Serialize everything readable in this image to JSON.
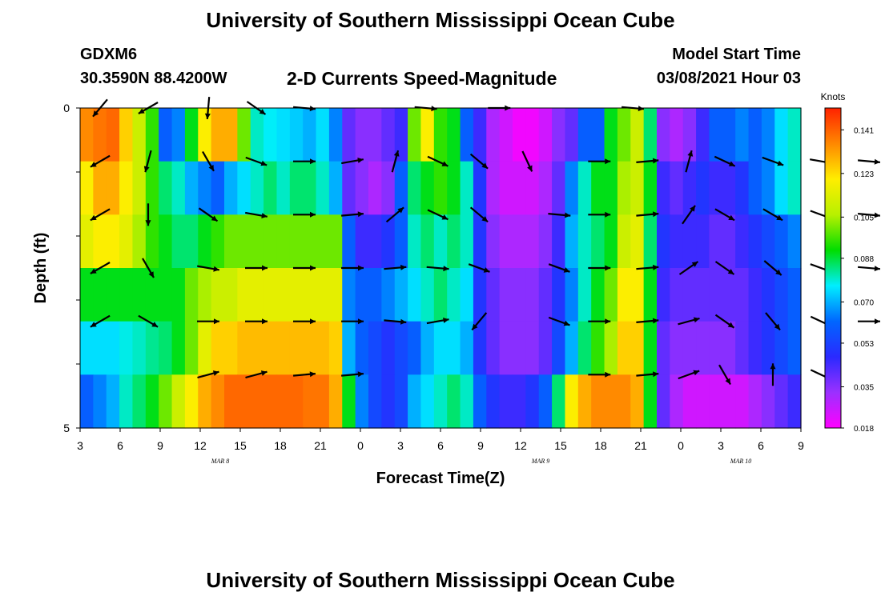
{
  "header": {
    "title": "University of Southern Mississippi Ocean Cube",
    "station_id": "GDXM6",
    "station_coords": "30.3590N 88.4200W",
    "plot_title": "2-D Currents Speed-Magnitude",
    "model_start_label": "Model Start Time",
    "model_start_value": "03/08/2021 Hour 03"
  },
  "footer": {
    "title": "University of Southern Mississippi Ocean Cube"
  },
  "chart_data": {
    "type": "heatmap",
    "title": "2-D Currents Speed-Magnitude",
    "xlabel": "Forecast Time(Z)",
    "ylabel": "Depth (ft)",
    "x_ticks": [
      "3",
      "6",
      "9",
      "12",
      "15",
      "18",
      "21",
      "0",
      "3",
      "6",
      "9",
      "12",
      "15",
      "18",
      "21",
      "0",
      "3",
      "6",
      "9"
    ],
    "date_labels": [
      {
        "label": "MAR 8",
        "tick_index": 3.5
      },
      {
        "label": "MAR 9",
        "tick_index": 11.5
      },
      {
        "label": "MAR 10",
        "tick_index": 16.5
      }
    ],
    "y_tick_labels": {
      "0": "0",
      "5": "5"
    },
    "ylim": [
      0,
      5
    ],
    "colorbar": {
      "unit": "Knots",
      "min": 0.018,
      "max": 0.15,
      "tick_labels": [
        "0.141",
        "0.123",
        "0.105",
        "0.088",
        "0.070",
        "0.053",
        "0.035",
        "0.018"
      ],
      "tick_values": [
        0.141,
        0.123,
        0.105,
        0.088,
        0.07,
        0.053,
        0.035,
        0.018
      ],
      "colors": [
        "#ff00ff",
        "#9b30ff",
        "#2a2aff",
        "#0066ff",
        "#00eeff",
        "#00dd00",
        "#b8f000",
        "#ffee00",
        "#ff8800",
        "#ff2200"
      ]
    },
    "series_time_hours": [
      3,
      4,
      5,
      6,
      7,
      8,
      9,
      10,
      11,
      12,
      13,
      14,
      15,
      16,
      17,
      18,
      19,
      20,
      21,
      22,
      23,
      24,
      25,
      26,
      27,
      28,
      29,
      30,
      31,
      32,
      33,
      34,
      35,
      36,
      37,
      38,
      39,
      40,
      41,
      42,
      43,
      44,
      45,
      46,
      47,
      48,
      49,
      50,
      51,
      52,
      53,
      54,
      55,
      56,
      57
    ],
    "speed_knots": [
      [
        0.135,
        0.138,
        0.14,
        0.125,
        0.11,
        0.095,
        0.06,
        0.065,
        0.09,
        0.12,
        0.13,
        0.13,
        0.1,
        0.08,
        0.077,
        0.075,
        0.073,
        0.07,
        0.075,
        0.065,
        0.04,
        0.035,
        0.035,
        0.04,
        0.045,
        0.1,
        0.12,
        0.095,
        0.09,
        0.06,
        0.045,
        0.03,
        0.025,
        0.02,
        0.02,
        0.025,
        0.035,
        0.04,
        0.06,
        0.06,
        0.09,
        0.1,
        0.11,
        0.085,
        0.035,
        0.03,
        0.035,
        0.045,
        0.06,
        0.06,
        0.065,
        0.06,
        0.065,
        0.075,
        0.08
      ],
      [
        0.12,
        0.13,
        0.13,
        0.12,
        0.11,
        0.095,
        0.085,
        0.08,
        0.07,
        0.065,
        0.06,
        0.07,
        0.075,
        0.08,
        0.085,
        0.08,
        0.085,
        0.085,
        0.08,
        0.07,
        0.04,
        0.035,
        0.03,
        0.035,
        0.06,
        0.085,
        0.09,
        0.095,
        0.09,
        0.08,
        0.05,
        0.03,
        0.025,
        0.025,
        0.025,
        0.03,
        0.04,
        0.065,
        0.08,
        0.09,
        0.09,
        0.105,
        0.11,
        0.09,
        0.045,
        0.04,
        0.045,
        0.05,
        0.045,
        0.045,
        0.05,
        0.06,
        0.065,
        0.075,
        0.08
      ],
      [
        0.115,
        0.12,
        0.12,
        0.115,
        0.105,
        0.095,
        0.09,
        0.085,
        0.085,
        0.09,
        0.095,
        0.1,
        0.1,
        0.1,
        0.1,
        0.1,
        0.1,
        0.1,
        0.1,
        0.1,
        0.06,
        0.045,
        0.045,
        0.05,
        0.06,
        0.08,
        0.085,
        0.08,
        0.085,
        0.08,
        0.05,
        0.035,
        0.03,
        0.03,
        0.03,
        0.035,
        0.045,
        0.07,
        0.08,
        0.085,
        0.09,
        0.11,
        0.115,
        0.085,
        0.05,
        0.045,
        0.045,
        0.045,
        0.04,
        0.04,
        0.045,
        0.05,
        0.055,
        0.06,
        0.065
      ],
      [
        0.09,
        0.09,
        0.09,
        0.09,
        0.09,
        0.09,
        0.09,
        0.09,
        0.1,
        0.105,
        0.11,
        0.11,
        0.115,
        0.115,
        0.115,
        0.115,
        0.115,
        0.115,
        0.115,
        0.115,
        0.065,
        0.06,
        0.06,
        0.065,
        0.07,
        0.075,
        0.08,
        0.085,
        0.08,
        0.075,
        0.05,
        0.04,
        0.035,
        0.035,
        0.035,
        0.04,
        0.05,
        0.065,
        0.08,
        0.09,
        0.1,
        0.12,
        0.12,
        0.09,
        0.045,
        0.04,
        0.04,
        0.04,
        0.04,
        0.04,
        0.04,
        0.045,
        0.05,
        0.055,
        0.06
      ],
      [
        0.075,
        0.075,
        0.075,
        0.078,
        0.08,
        0.083,
        0.085,
        0.09,
        0.1,
        0.115,
        0.125,
        0.125,
        0.128,
        0.128,
        0.128,
        0.128,
        0.128,
        0.128,
        0.128,
        0.125,
        0.07,
        0.06,
        0.055,
        0.05,
        0.055,
        0.06,
        0.07,
        0.075,
        0.075,
        0.07,
        0.05,
        0.04,
        0.035,
        0.035,
        0.035,
        0.04,
        0.055,
        0.07,
        0.085,
        0.095,
        0.105,
        0.125,
        0.125,
        0.09,
        0.04,
        0.035,
        0.035,
        0.035,
        0.035,
        0.035,
        0.04,
        0.045,
        0.05,
        0.055,
        0.06
      ],
      [
        0.06,
        0.065,
        0.07,
        0.08,
        0.085,
        0.09,
        0.1,
        0.11,
        0.12,
        0.13,
        0.135,
        0.14,
        0.14,
        0.14,
        0.14,
        0.14,
        0.14,
        0.138,
        0.138,
        0.13,
        0.09,
        0.065,
        0.055,
        0.05,
        0.055,
        0.07,
        0.075,
        0.08,
        0.085,
        0.08,
        0.06,
        0.05,
        0.045,
        0.045,
        0.05,
        0.06,
        0.085,
        0.12,
        0.13,
        0.135,
        0.135,
        0.135,
        0.13,
        0.09,
        0.04,
        0.03,
        0.025,
        0.025,
        0.025,
        0.025,
        0.025,
        0.03,
        0.035,
        0.04,
        0.045
      ]
    ],
    "vectors": [
      [
        [
          4.5,
          220
        ],
        [
          8.1,
          240
        ],
        [
          12.6,
          185
        ],
        [
          16.2,
          125
        ],
        [
          19.8,
          95
        ],
        [
          28.9,
          95
        ],
        [
          34.4,
          90
        ],
        [
          44.4,
          95
        ]
      ],
      [
        [
          4.5,
          240
        ],
        [
          8.1,
          195
        ],
        [
          12.6,
          150
        ],
        [
          16.2,
          110
        ],
        [
          19.8,
          90
        ],
        [
          23.4,
          80
        ],
        [
          26.6,
          15
        ],
        [
          29.8,
          115
        ],
        [
          32.9,
          130
        ],
        [
          36.5,
          155
        ],
        [
          41.9,
          90
        ],
        [
          45.5,
          85
        ],
        [
          48.6,
          15
        ],
        [
          51.3,
          115
        ],
        [
          54.9,
          110
        ],
        [
          58.5,
          100
        ],
        [
          62.1,
          95
        ],
        [
          65.7,
          110
        ]
      ],
      [
        [
          4.5,
          240
        ],
        [
          8.1,
          180
        ],
        [
          12.6,
          125
        ],
        [
          16.2,
          100
        ],
        [
          19.8,
          90
        ],
        [
          23.4,
          85
        ],
        [
          26.6,
          50
        ],
        [
          29.8,
          115
        ],
        [
          32.9,
          130
        ],
        [
          38.9,
          95
        ],
        [
          41.9,
          90
        ],
        [
          45.5,
          85
        ],
        [
          48.6,
          35
        ],
        [
          51.3,
          120
        ],
        [
          54.9,
          120
        ],
        [
          58.5,
          110
        ],
        [
          62.1,
          95
        ],
        [
          65.7,
          110
        ]
      ],
      [
        [
          4.5,
          240
        ],
        [
          8.1,
          150
        ],
        [
          12.6,
          100
        ],
        [
          16.2,
          90
        ],
        [
          19.8,
          90
        ],
        [
          23.4,
          90
        ],
        [
          26.6,
          85
        ],
        [
          29.8,
          95
        ],
        [
          32.9,
          110
        ],
        [
          38.9,
          110
        ],
        [
          41.9,
          90
        ],
        [
          45.5,
          85
        ],
        [
          48.6,
          55
        ],
        [
          51.3,
          125
        ],
        [
          54.9,
          130
        ],
        [
          58.5,
          110
        ],
        [
          62.1,
          95
        ],
        [
          65.7,
          110
        ]
      ],
      [
        [
          4.5,
          240
        ],
        [
          8.1,
          120
        ],
        [
          12.6,
          90
        ],
        [
          16.2,
          90
        ],
        [
          19.8,
          90
        ],
        [
          23.4,
          90
        ],
        [
          26.6,
          95
        ],
        [
          29.8,
          80
        ],
        [
          32.9,
          220
        ],
        [
          38.9,
          110
        ],
        [
          41.9,
          90
        ],
        [
          45.5,
          85
        ],
        [
          48.6,
          75
        ],
        [
          51.3,
          125
        ],
        [
          54.9,
          140
        ],
        [
          58.5,
          115
        ],
        [
          62.1,
          90
        ],
        [
          65.7,
          90
        ]
      ],
      [
        [
          12.6,
          75
        ],
        [
          16.2,
          75
        ],
        [
          19.8,
          85
        ],
        [
          23.4,
          85
        ],
        [
          41.9,
          90
        ],
        [
          45.5,
          85
        ],
        [
          48.6,
          70
        ],
        [
          51.3,
          150
        ],
        [
          54.9,
          0
        ],
        [
          58.5,
          115
        ]
      ]
    ]
  }
}
